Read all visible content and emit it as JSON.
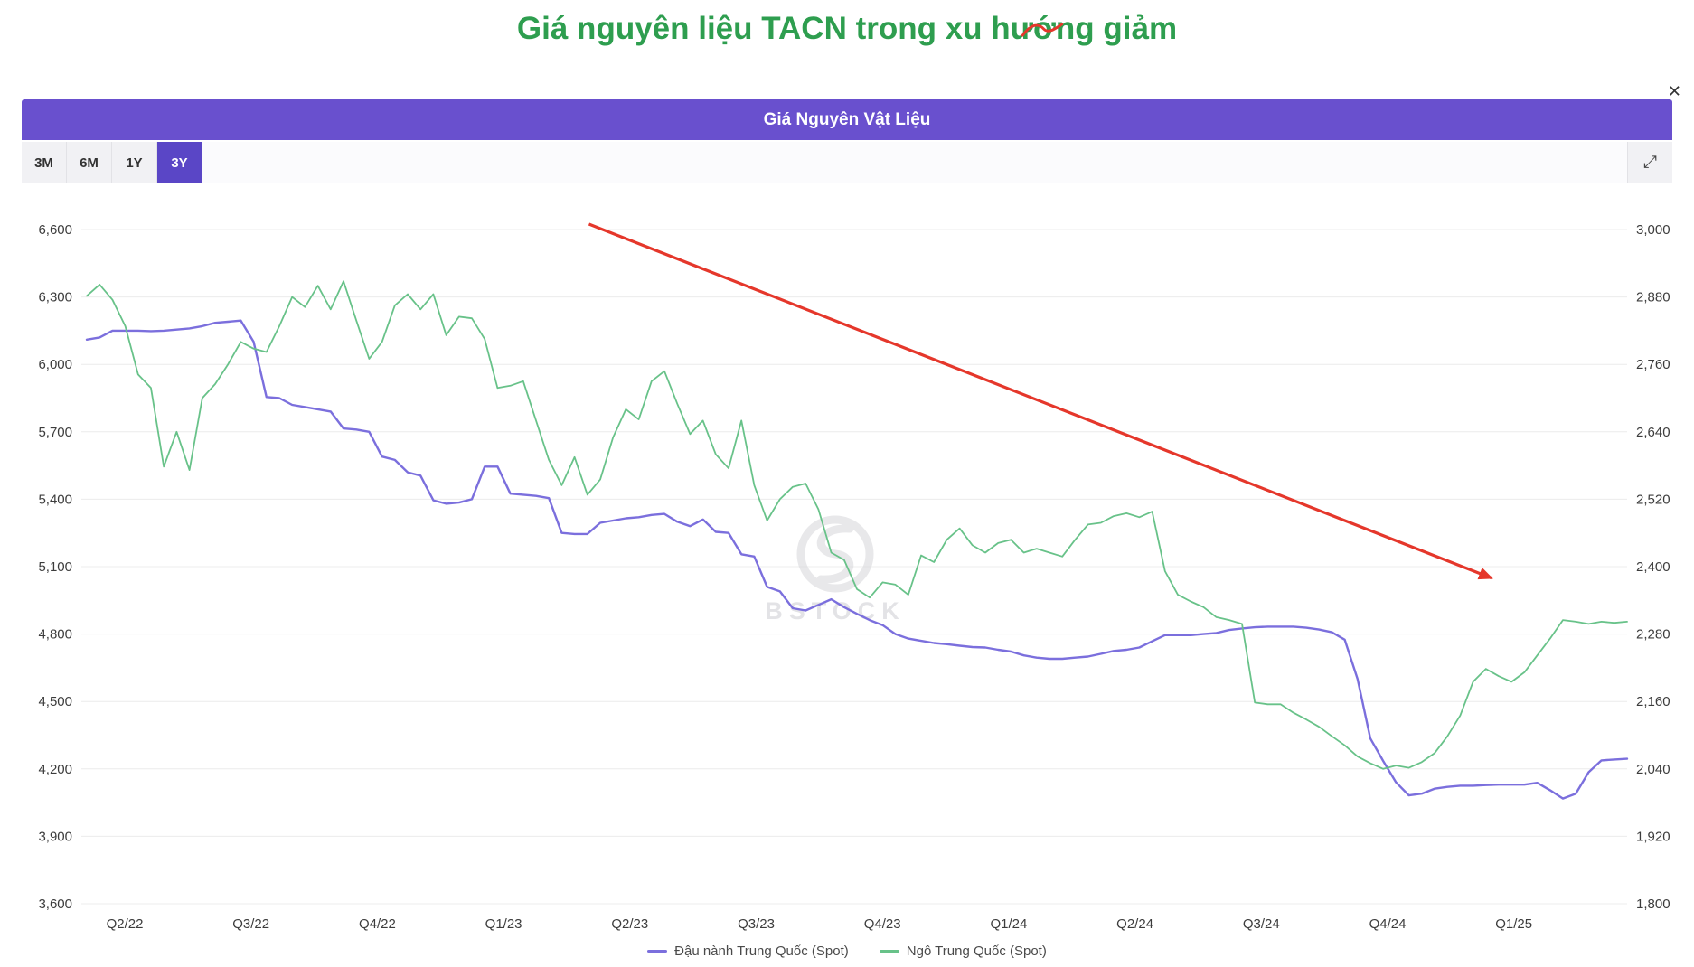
{
  "colors": {
    "title_green": "#2e9e4f",
    "header_purple": "#6950ce",
    "active_button_purple": "#5a46c6",
    "arrow_red": "#e5372b"
  },
  "page": {
    "title": "Giá nguyên liệu TACN trong xu hướng giảm"
  },
  "panel": {
    "header": "Giá Nguyên Vật Liệu",
    "close_label": "✕",
    "expand_icon": "⤢",
    "range_buttons": [
      {
        "label": "3M",
        "active": false
      },
      {
        "label": "6M",
        "active": false
      },
      {
        "label": "1Y",
        "active": false
      },
      {
        "label": "3Y",
        "active": true
      }
    ]
  },
  "chart_data": {
    "type": "line",
    "title": "Giá Nguyên Vật Liệu",
    "x_labels": [
      "Q2/22",
      "Q3/22",
      "Q4/22",
      "Q1/23",
      "Q2/23",
      "Q3/23",
      "Q4/23",
      "Q1/24",
      "Q2/24",
      "Q3/24",
      "Q4/24",
      "Q1/25"
    ],
    "left_axis": {
      "max": 6600,
      "min": 3600,
      "tick_labels": [
        "6,600",
        "6,300",
        "6,000",
        "5,700",
        "5,400",
        "5,100",
        "4,800",
        "4,500",
        "4,200",
        "3,900",
        "3,600"
      ]
    },
    "right_axis": {
      "max": 3000,
      "min": 1800,
      "tick_labels": [
        "3,000",
        "2,880",
        "2,760",
        "2,640",
        "2,520",
        "2,400",
        "2,280",
        "2,160",
        "2,040",
        "1,920",
        "1,800"
      ]
    },
    "grid": true,
    "legend_position": "bottom",
    "watermark": "BSTOCK",
    "series": [
      {
        "name": "Đậu nành Trung Quốc (Spot)",
        "axis": "left",
        "color": "#7b6fdd",
        "values": [
          6110,
          6120,
          6150,
          6150,
          6150,
          6148,
          6150,
          6155,
          6160,
          6170,
          6185,
          6190,
          6195,
          6100,
          5855,
          5850,
          5820,
          5810,
          5800,
          5790,
          5715,
          5710,
          5700,
          5590,
          5575,
          5520,
          5505,
          5395,
          5380,
          5385,
          5400,
          5545,
          5545,
          5425,
          5420,
          5415,
          5405,
          5250,
          5245,
          5245,
          5295,
          5305,
          5315,
          5320,
          5330,
          5335,
          5300,
          5280,
          5310,
          5255,
          5250,
          5155,
          5145,
          5010,
          4990,
          4915,
          4905,
          4930,
          4955,
          4920,
          4890,
          4862,
          4840,
          4800,
          4780,
          4770,
          4760,
          4755,
          4748,
          4742,
          4740,
          4730,
          4722,
          4705,
          4695,
          4690,
          4690,
          4695,
          4700,
          4712,
          4725,
          4730,
          4740,
          4768,
          4795,
          4795,
          4795,
          4800,
          4805,
          4818,
          4825,
          4830,
          4833,
          4833,
          4833,
          4828,
          4820,
          4808,
          4775,
          4600,
          4335,
          4235,
          4140,
          4082,
          4090,
          4112,
          4120,
          4125,
          4125,
          4128,
          4130,
          4130,
          4130,
          4138,
          4105,
          4068,
          4090,
          4185,
          4238,
          4242,
          4245
        ]
      },
      {
        "name": "Ngô Trung Quốc (Spot)",
        "axis": "right",
        "color": "#68c289",
        "values": [
          2882,
          2902,
          2875,
          2828,
          2742,
          2718,
          2578,
          2640,
          2572,
          2700,
          2725,
          2760,
          2800,
          2788,
          2782,
          2828,
          2880,
          2862,
          2900,
          2858,
          2908,
          2838,
          2770,
          2800,
          2865,
          2885,
          2858,
          2885,
          2812,
          2845,
          2842,
          2805,
          2718,
          2722,
          2730,
          2660,
          2590,
          2545,
          2595,
          2528,
          2555,
          2630,
          2680,
          2662,
          2730,
          2748,
          2690,
          2636,
          2660,
          2600,
          2575,
          2660,
          2545,
          2482,
          2520,
          2542,
          2548,
          2502,
          2425,
          2412,
          2360,
          2345,
          2372,
          2368,
          2350,
          2420,
          2408,
          2448,
          2468,
          2438,
          2425,
          2442,
          2448,
          2425,
          2432,
          2425,
          2418,
          2448,
          2475,
          2478,
          2490,
          2495,
          2488,
          2498,
          2392,
          2350,
          2338,
          2328,
          2310,
          2305,
          2298,
          2158,
          2155,
          2155,
          2140,
          2128,
          2115,
          2098,
          2082,
          2062,
          2050,
          2040,
          2046,
          2042,
          2052,
          2068,
          2098,
          2135,
          2195,
          2218,
          2205,
          2195,
          2212,
          2242,
          2272,
          2305,
          2302,
          2298,
          2302,
          2300,
          2302
        ]
      }
    ],
    "annotation": {
      "type": "arrow",
      "color": "#e5372b",
      "from_frac": [
        0.326,
        -0.008
      ],
      "to_frac": [
        0.912,
        0.517
      ]
    }
  }
}
